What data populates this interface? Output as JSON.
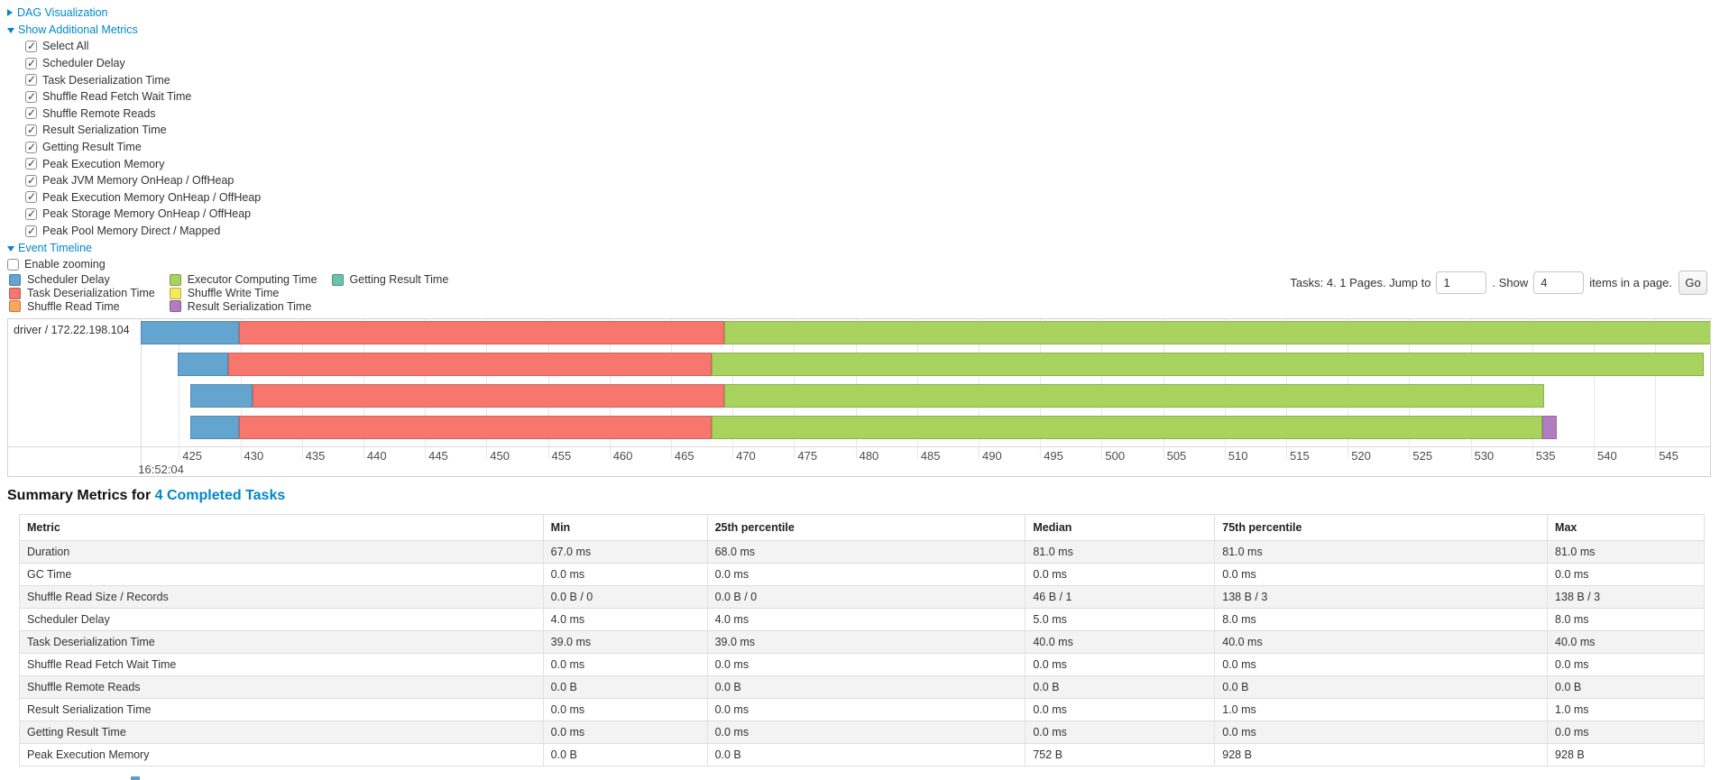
{
  "controls": {
    "dag": {
      "label": "DAG Visualization"
    },
    "metrics": {
      "label": "Show Additional Metrics",
      "items": [
        {
          "label": "Select All",
          "checked": true
        },
        {
          "label": "Scheduler Delay",
          "checked": true
        },
        {
          "label": "Task Deserialization Time",
          "checked": true
        },
        {
          "label": "Shuffle Read Fetch Wait Time",
          "checked": true
        },
        {
          "label": "Shuffle Remote Reads",
          "checked": true
        },
        {
          "label": "Result Serialization Time",
          "checked": true
        },
        {
          "label": "Getting Result Time",
          "checked": true
        },
        {
          "label": "Peak Execution Memory",
          "checked": true
        },
        {
          "label": "Peak JVM Memory OnHeap / OffHeap",
          "checked": true
        },
        {
          "label": "Peak Execution Memory OnHeap / OffHeap",
          "checked": true
        },
        {
          "label": "Peak Storage Memory OnHeap / OffHeap",
          "checked": true
        },
        {
          "label": "Peak Pool Memory Direct / Mapped",
          "checked": true
        }
      ]
    },
    "event_timeline": {
      "label": "Event Timeline"
    },
    "enable_zooming": {
      "label": "Enable zooming",
      "checked": false
    }
  },
  "pagination": {
    "summary": "Tasks: 4. 1 Pages. Jump to",
    "jump_value": "1",
    "show_label": ". Show",
    "show_value": "4",
    "items_label": "items in a page.",
    "go_label": "Go"
  },
  "chart_data": {
    "type": "timeline",
    "group_label": "driver / 172.22.198.104",
    "x_axis": {
      "domain_min": 421.9,
      "domain_max": 549.6,
      "tick_start": 425,
      "tick_end": 550,
      "tick_step": 5,
      "time_label": "16:52:04"
    },
    "legend": [
      {
        "key": "scheduler_delay",
        "label": "Scheduler Delay",
        "color": "#63a5cf"
      },
      {
        "key": "task_deserialization",
        "label": "Task Deserialization Time",
        "color": "#f7766d"
      },
      {
        "key": "shuffle_read",
        "label": "Shuffle Read Time",
        "color": "#f9a65b"
      },
      {
        "key": "executor_computing",
        "label": "Executor Computing Time",
        "color": "#a8d35e"
      },
      {
        "key": "shuffle_write",
        "label": "Shuffle Write Time",
        "color": "#f5e95c"
      },
      {
        "key": "result_serialization",
        "label": "Result Serialization Time",
        "color": "#b47cc0"
      },
      {
        "key": "getting_result",
        "label": "Getting Result Time",
        "color": "#6ac3ad"
      }
    ],
    "tasks": [
      {
        "segments": [
          {
            "key": "scheduler_delay",
            "start": 421.9,
            "end": 429.9
          },
          {
            "key": "task_deserialization",
            "start": 429.9,
            "end": 469.3
          },
          {
            "key": "executor_computing",
            "start": 469.3,
            "end": 549.6
          }
        ]
      },
      {
        "segments": [
          {
            "key": "scheduler_delay",
            "start": 424.9,
            "end": 429.0
          },
          {
            "key": "task_deserialization",
            "start": 429.0,
            "end": 468.3
          },
          {
            "key": "executor_computing",
            "start": 468.3,
            "end": 548.9
          }
        ]
      },
      {
        "segments": [
          {
            "key": "scheduler_delay",
            "start": 425.9,
            "end": 431.0
          },
          {
            "key": "task_deserialization",
            "start": 431.0,
            "end": 469.3
          },
          {
            "key": "executor_computing",
            "start": 469.3,
            "end": 536.0
          }
        ]
      },
      {
        "segments": [
          {
            "key": "scheduler_delay",
            "start": 425.9,
            "end": 429.9
          },
          {
            "key": "task_deserialization",
            "start": 429.9,
            "end": 468.3
          },
          {
            "key": "executor_computing",
            "start": 468.3,
            "end": 535.8
          },
          {
            "key": "result_serialization",
            "start": 535.8,
            "end": 537.0
          }
        ]
      }
    ]
  },
  "summary": {
    "title_prefix": "Summary Metrics for ",
    "title_link": "4 Completed Tasks",
    "columns": [
      "Metric",
      "Min",
      "25th percentile",
      "Median",
      "75th percentile",
      "Max"
    ],
    "rows": [
      [
        "Duration",
        "67.0 ms",
        "68.0 ms",
        "81.0 ms",
        "81.0 ms",
        "81.0 ms"
      ],
      [
        "GC Time",
        "0.0 ms",
        "0.0 ms",
        "0.0 ms",
        "0.0 ms",
        "0.0 ms"
      ],
      [
        "Shuffle Read Size / Records",
        "0.0 B / 0",
        "0.0 B / 0",
        "46 B / 1",
        "138 B / 3",
        "138 B / 3"
      ],
      [
        "Scheduler Delay",
        "4.0 ms",
        "4.0 ms",
        "5.0 ms",
        "8.0 ms",
        "8.0 ms"
      ],
      [
        "Task Deserialization Time",
        "39.0 ms",
        "39.0 ms",
        "40.0 ms",
        "40.0 ms",
        "40.0 ms"
      ],
      [
        "Shuffle Read Fetch Wait Time",
        "0.0 ms",
        "0.0 ms",
        "0.0 ms",
        "0.0 ms",
        "0.0 ms"
      ],
      [
        "Shuffle Remote Reads",
        "0.0 B",
        "0.0 B",
        "0.0 B",
        "0.0 B",
        "0.0 B"
      ],
      [
        "Result Serialization Time",
        "0.0 ms",
        "0.0 ms",
        "0.0 ms",
        "1.0 ms",
        "1.0 ms"
      ],
      [
        "Getting Result Time",
        "0.0 ms",
        "0.0 ms",
        "0.0 ms",
        "0.0 ms",
        "0.0 ms"
      ],
      [
        "Peak Execution Memory",
        "0.0 B",
        "0.0 B",
        "752 B",
        "928 B",
        "928 B"
      ]
    ]
  }
}
